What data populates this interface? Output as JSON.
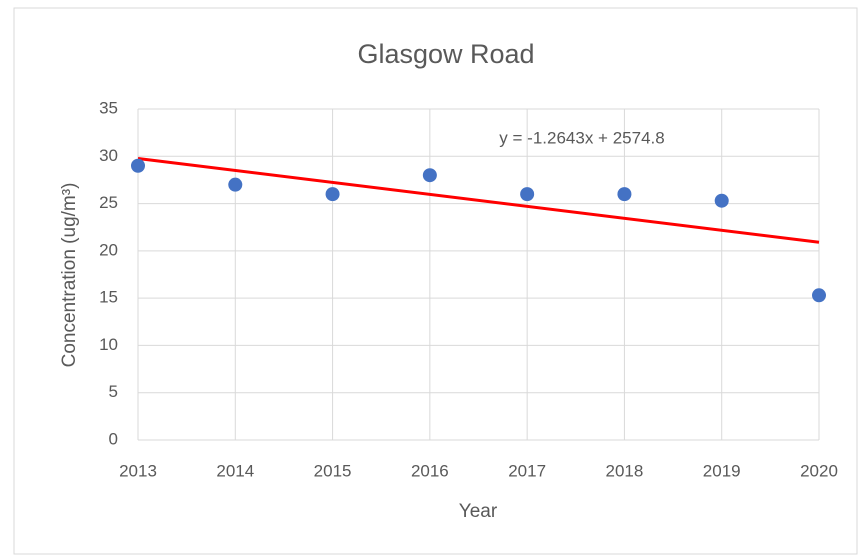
{
  "chart_data": {
    "type": "scatter",
    "title": "Glasgow Road",
    "x_label": "Year",
    "y_label": "Concentration (ug/m³)",
    "series": [
      {
        "name": "Concentration",
        "color": "#4472c4",
        "x": [
          2013,
          2014,
          2015,
          2016,
          2017,
          2018,
          2019,
          2020
        ],
        "values": [
          29,
          27,
          26,
          28,
          26,
          26,
          25.3,
          15.3
        ]
      }
    ],
    "trendline": {
      "slope": -1.2643,
      "intercept": 2574.8,
      "label": "y = -1.2643x + 2574.8",
      "color": "#ff0000"
    },
    "xlim": [
      2013,
      2020
    ],
    "xticks": [
      2013,
      2014,
      2015,
      2016,
      2017,
      2018,
      2019,
      2020
    ],
    "ylim": [
      0,
      35
    ],
    "yticks": [
      0,
      5,
      10,
      15,
      20,
      25,
      30,
      35
    ],
    "grid": true
  }
}
